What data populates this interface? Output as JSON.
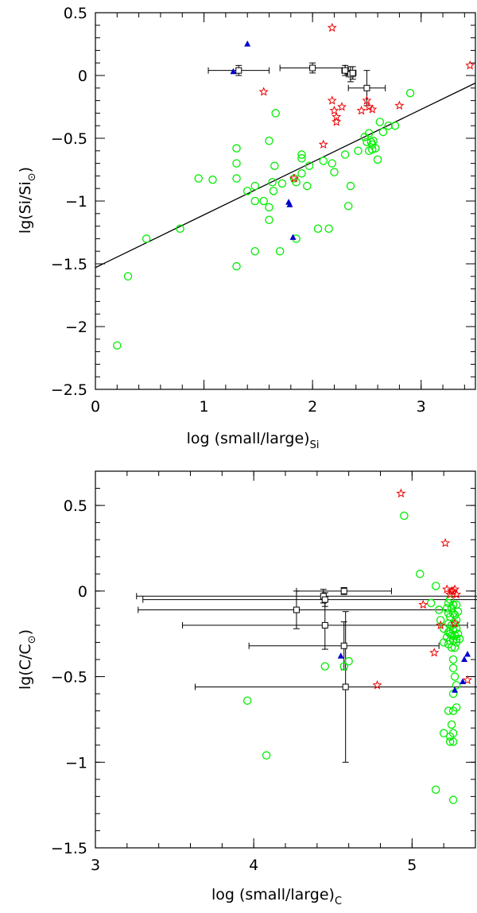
{
  "chart_data": [
    {
      "type": "scatter",
      "title": "",
      "xlabel": "log (small/large)",
      "xlabel_sub": "Si",
      "ylabel": "lg(Si/Si",
      "ylabel_sun": "⊙",
      "ylabel_close": ")",
      "xlim": [
        0,
        3.5
      ],
      "ylim": [
        -2.5,
        0.5
      ],
      "xticks": [
        0,
        1,
        2,
        3
      ],
      "xtick_labels": [
        "0",
        "1",
        "2",
        "3"
      ],
      "yticks": [
        0.5,
        0,
        -0.5,
        -1,
        -1.5,
        -2,
        -2.5
      ],
      "ytick_labels": [
        "0.5",
        "0",
        "−0.5",
        "−1",
        "−1.5",
        "−2",
        "−2.5"
      ],
      "fit_line": {
        "x": [
          0,
          3.5
        ],
        "y": [
          -1.53,
          -0.06
        ]
      },
      "series": [
        {
          "name": "circles",
          "marker": "circle",
          "color": "#00ee00",
          "points": [
            [
              0.2,
              -2.15
            ],
            [
              0.3,
              -1.6
            ],
            [
              0.47,
              -1.3
            ],
            [
              0.78,
              -1.22
            ],
            [
              0.95,
              -0.82
            ],
            [
              1.08,
              -0.83
            ],
            [
              1.3,
              -0.58
            ],
            [
              1.3,
              -0.7
            ],
            [
              1.3,
              -0.82
            ],
            [
              1.3,
              -1.52
            ],
            [
              1.4,
              -0.92
            ],
            [
              1.47,
              -0.88
            ],
            [
              1.47,
              -1.0
            ],
            [
              1.47,
              -1.4
            ],
            [
              1.55,
              -1.0
            ],
            [
              1.6,
              -1.05
            ],
            [
              1.6,
              -1.15
            ],
            [
              1.6,
              -0.52
            ],
            [
              1.63,
              -0.85
            ],
            [
              1.64,
              -0.92
            ],
            [
              1.65,
              -0.72
            ],
            [
              1.66,
              -0.3
            ],
            [
              1.7,
              -1.4
            ],
            [
              1.72,
              -0.86
            ],
            [
              1.83,
              -0.82
            ],
            [
              1.85,
              -0.85
            ],
            [
              1.85,
              -1.3
            ],
            [
              1.9,
              -0.63
            ],
            [
              1.9,
              -0.66
            ],
            [
              1.9,
              -0.78
            ],
            [
              1.95,
              -0.88
            ],
            [
              1.97,
              -0.72
            ],
            [
              2.05,
              -1.22
            ],
            [
              2.1,
              -0.68
            ],
            [
              2.15,
              -1.22
            ],
            [
              2.18,
              -0.7
            ],
            [
              2.2,
              -0.77
            ],
            [
              2.3,
              -0.63
            ],
            [
              2.33,
              -1.04
            ],
            [
              2.35,
              -0.88
            ],
            [
              2.42,
              -0.6
            ],
            [
              2.48,
              -0.49
            ],
            [
              2.5,
              -0.53
            ],
            [
              2.52,
              -0.46
            ],
            [
              2.54,
              -0.53
            ],
            [
              2.56,
              -0.52
            ],
            [
              2.58,
              -0.58
            ],
            [
              2.6,
              -0.67
            ],
            [
              2.52,
              -0.6
            ],
            [
              2.55,
              -0.55
            ],
            [
              2.62,
              -0.37
            ],
            [
              2.65,
              -0.45
            ],
            [
              2.7,
              -0.4
            ],
            [
              2.76,
              -0.4
            ],
            [
              2.9,
              -0.14
            ],
            [
              2.55,
              -0.59
            ]
          ]
        },
        {
          "name": "stars",
          "marker": "star",
          "color": "#ee0000",
          "points": [
            [
              2.18,
              0.38
            ],
            [
              1.55,
              -0.13
            ],
            [
              2.18,
              -0.2
            ],
            [
              2.2,
              -0.28
            ],
            [
              2.22,
              -0.33
            ],
            [
              2.22,
              -0.37
            ],
            [
              2.27,
              -0.25
            ],
            [
              2.45,
              -0.28
            ],
            [
              2.5,
              -0.2
            ],
            [
              2.52,
              -0.25
            ],
            [
              2.55,
              -0.27
            ],
            [
              2.8,
              -0.24
            ],
            [
              2.1,
              -0.55
            ],
            [
              1.83,
              -0.82
            ],
            [
              3.45,
              0.08
            ]
          ]
        },
        {
          "name": "triangles",
          "marker": "triangle",
          "color": "#0000cc",
          "points": [
            [
              1.4,
              0.25
            ],
            [
              1.27,
              0.03
            ],
            [
              1.78,
              -1.01
            ],
            [
              1.79,
              -1.03
            ],
            [
              1.82,
              -1.29
            ]
          ]
        },
        {
          "name": "squares",
          "marker": "square",
          "color": "#000000",
          "points": [
            [
              1.32,
              0.04,
              0.28,
              0.04
            ],
            [
              2.0,
              0.06,
              0.3,
              0.04
            ],
            [
              2.3,
              0.04,
              0.03,
              0.04
            ],
            [
              2.35,
              0.01,
              0.04,
              0.06
            ],
            [
              2.37,
              0.02,
              0.03,
              0.05
            ],
            [
              2.5,
              -0.1,
              0.17,
              0.14
            ]
          ]
        }
      ]
    },
    {
      "type": "scatter",
      "title": "",
      "xlabel": "log (small/large)",
      "xlabel_sub": "C",
      "ylabel": "lg(C/C",
      "ylabel_sun": "⊙",
      "ylabel_close": ")",
      "xlim": [
        3,
        5.4
      ],
      "ylim": [
        -1.5,
        0.7
      ],
      "xticks": [
        3,
        4,
        5
      ],
      "xtick_labels": [
        "3",
        "4",
        "5"
      ],
      "yticks": [
        0.5,
        0,
        -0.5,
        -1,
        -1.5
      ],
      "ytick_labels": [
        "0.5",
        "0",
        "−0.5",
        "−1",
        "−1.5"
      ],
      "series": [
        {
          "name": "circles",
          "marker": "circle",
          "color": "#00ee00",
          "points": [
            [
              3.96,
              -0.64
            ],
            [
              4.08,
              -0.96
            ],
            [
              4.45,
              -0.44
            ],
            [
              4.57,
              -0.44
            ],
            [
              4.6,
              -0.41
            ],
            [
              4.95,
              0.44
            ],
            [
              5.05,
              0.1
            ],
            [
              5.12,
              -0.07
            ],
            [
              5.15,
              0.03
            ],
            [
              5.15,
              -1.16
            ],
            [
              5.17,
              -0.11
            ],
            [
              5.18,
              -0.17
            ],
            [
              5.2,
              -0.22
            ],
            [
              5.2,
              -0.3
            ],
            [
              5.2,
              -0.83
            ],
            [
              5.22,
              -0.1
            ],
            [
              5.22,
              -0.27
            ],
            [
              5.23,
              -0.07
            ],
            [
              5.23,
              -0.13
            ],
            [
              5.23,
              -0.19
            ],
            [
              5.23,
              -0.24
            ],
            [
              5.23,
              -0.31
            ],
            [
              5.23,
              -0.7
            ],
            [
              5.24,
              -0.05
            ],
            [
              5.24,
              -0.15
            ],
            [
              5.24,
              -0.25
            ],
            [
              5.24,
              -0.29
            ],
            [
              5.24,
              -0.85
            ],
            [
              5.24,
              -0.88
            ],
            [
              5.25,
              -0.1
            ],
            [
              5.25,
              -0.2
            ],
            [
              5.25,
              -0.26
            ],
            [
              5.25,
              -0.33
            ],
            [
              5.25,
              -0.78
            ],
            [
              5.26,
              -0.08
            ],
            [
              5.26,
              -0.13
            ],
            [
              5.26,
              -0.23
            ],
            [
              5.26,
              -0.29
            ],
            [
              5.26,
              -0.4
            ],
            [
              5.26,
              -0.45
            ],
            [
              5.26,
              -0.6
            ],
            [
              5.26,
              -0.7
            ],
            [
              5.26,
              -0.83
            ],
            [
              5.26,
              -0.88
            ],
            [
              5.26,
              -1.22
            ],
            [
              5.27,
              -0.14
            ],
            [
              5.27,
              -0.19
            ],
            [
              5.27,
              -0.26
            ],
            [
              5.27,
              -0.33
            ],
            [
              5.27,
              -0.5
            ],
            [
              5.28,
              -0.08
            ],
            [
              5.28,
              -0.17
            ],
            [
              5.28,
              -0.22
            ],
            [
              5.28,
              -0.28
            ],
            [
              5.28,
              -0.3
            ],
            [
              5.28,
              -0.55
            ],
            [
              5.28,
              -0.68
            ],
            [
              5.29,
              -0.12
            ],
            [
              5.29,
              -0.25
            ],
            [
              5.3,
              -0.28
            ]
          ]
        },
        {
          "name": "stars",
          "marker": "star",
          "color": "#ee0000",
          "points": [
            [
              4.93,
              0.57
            ],
            [
              5.07,
              -0.08
            ],
            [
              5.14,
              -0.36
            ],
            [
              5.18,
              -0.2
            ],
            [
              5.21,
              0.28
            ],
            [
              5.22,
              0.01
            ],
            [
              5.24,
              -0.02
            ],
            [
              5.25,
              0.0
            ],
            [
              5.26,
              0.0
            ],
            [
              5.27,
              0.01
            ],
            [
              5.28,
              -0.02
            ],
            [
              5.27,
              -0.19
            ],
            [
              5.35,
              -0.52
            ],
            [
              4.78,
              -0.55
            ]
          ]
        },
        {
          "name": "triangles",
          "marker": "triangle",
          "color": "#0000cc",
          "points": [
            [
              4.55,
              -0.38
            ],
            [
              5.27,
              -0.58
            ],
            [
              5.32,
              -0.53
            ],
            [
              5.33,
              -0.4
            ],
            [
              5.35,
              -0.37
            ]
          ]
        },
        {
          "name": "squares",
          "marker": "square",
          "color": "#000000",
          "points": [
            [
              4.27,
              -0.11,
              1.0,
              0.11
            ],
            [
              4.44,
              -0.03,
              1.18,
              0.04
            ],
            [
              4.45,
              -0.05,
              1.15,
              0.04
            ],
            [
              4.45,
              -0.2,
              0.9,
              0.14
            ],
            [
              4.57,
              0.0,
              0.3,
              0.02
            ],
            [
              4.57,
              -0.32,
              0.6,
              0.14
            ],
            [
              4.58,
              -0.56,
              0.95,
              0.44
            ]
          ]
        }
      ]
    }
  ]
}
